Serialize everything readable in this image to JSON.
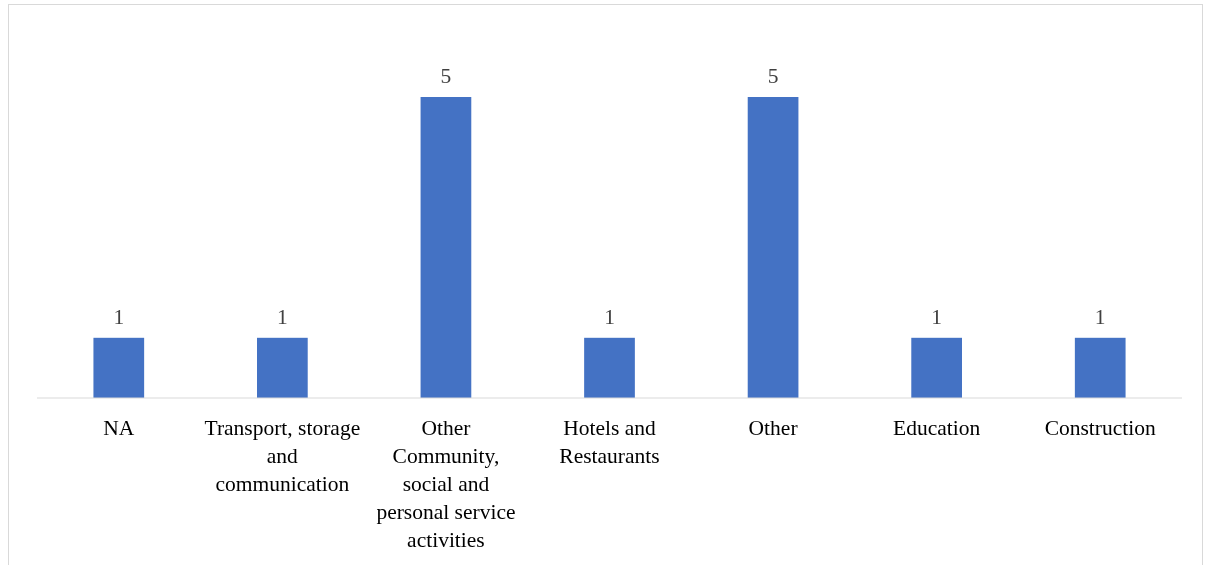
{
  "chart_data": {
    "type": "bar",
    "categories": [
      "NA",
      "Transport, storage and communication",
      "Other Community, social and personal service activities",
      "Hotels and Restaurants",
      "Other",
      "Education",
      "Construction"
    ],
    "values": [
      1,
      1,
      5,
      1,
      5,
      1,
      1
    ],
    "color": "#4472c4",
    "data_labels": true
  }
}
